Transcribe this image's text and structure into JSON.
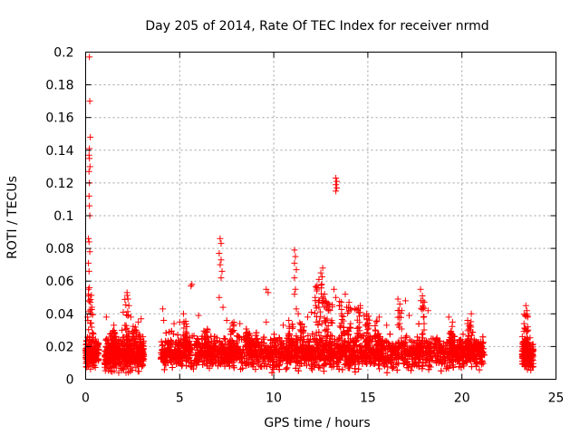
{
  "chart_data": {
    "type": "scatter",
    "title": "Day 205 of 2014, Rate Of TEC Index for receiver nrmd",
    "xlabel": "GPS time / hours",
    "ylabel": "ROTI / TECUs",
    "xlim": [
      0,
      25
    ],
    "ylim": [
      0,
      0.2
    ],
    "xticks": [
      0,
      5,
      10,
      15,
      20,
      25
    ],
    "xtick_labels": [
      "0",
      "5",
      "10",
      "15",
      "20",
      "25"
    ],
    "yticks": [
      0,
      0.02,
      0.04,
      0.06,
      0.08,
      0.1,
      0.12,
      0.14,
      0.16,
      0.18,
      0.2
    ],
    "ytick_labels": [
      "0",
      "0.02",
      "0.04",
      "0.06",
      "0.08",
      "0.1",
      "0.12",
      "0.14",
      "0.16",
      "0.18",
      "0.2"
    ],
    "grid": true,
    "marker": "+",
    "color": "#ff0000",
    "segments": [
      {
        "start": 0.0,
        "end": 0.7,
        "base": 0.016,
        "spread": 0.01
      },
      {
        "start": 1.0,
        "end": 3.1,
        "base": 0.015,
        "spread": 0.01
      },
      {
        "start": 4.0,
        "end": 21.2,
        "base": 0.016,
        "spread": 0.01
      },
      {
        "start": 23.2,
        "end": 23.8,
        "base": 0.015,
        "spread": 0.009
      }
    ],
    "outliers": [
      {
        "x": 0.2,
        "y": 0.197
      },
      {
        "x": 0.22,
        "y": 0.17
      },
      {
        "x": 0.25,
        "y": 0.148
      },
      {
        "x": 0.2,
        "y": 0.141
      },
      {
        "x": 0.18,
        "y": 0.137
      },
      {
        "x": 0.2,
        "y": 0.135
      },
      {
        "x": 0.23,
        "y": 0.13
      },
      {
        "x": 0.18,
        "y": 0.127
      },
      {
        "x": 0.2,
        "y": 0.12
      },
      {
        "x": 0.18,
        "y": 0.112
      },
      {
        "x": 0.2,
        "y": 0.106
      },
      {
        "x": 0.22,
        "y": 0.1
      },
      {
        "x": 0.15,
        "y": 0.086
      },
      {
        "x": 0.18,
        "y": 0.084
      },
      {
        "x": 0.22,
        "y": 0.078
      },
      {
        "x": 0.15,
        "y": 0.071
      },
      {
        "x": 0.18,
        "y": 0.066
      },
      {
        "x": 0.2,
        "y": 0.056
      },
      {
        "x": 0.15,
        "y": 0.051
      },
      {
        "x": 0.2,
        "y": 0.048
      },
      {
        "x": 0.1,
        "y": 0.038
      },
      {
        "x": 0.12,
        "y": 0.036
      },
      {
        "x": 1.1,
        "y": 0.038
      },
      {
        "x": 1.5,
        "y": 0.033
      },
      {
        "x": 2.0,
        "y": 0.041
      },
      {
        "x": 2.2,
        "y": 0.053
      },
      {
        "x": 2.25,
        "y": 0.049
      },
      {
        "x": 2.3,
        "y": 0.045
      },
      {
        "x": 2.4,
        "y": 0.038
      },
      {
        "x": 2.8,
        "y": 0.035
      },
      {
        "x": 2.95,
        "y": 0.037
      },
      {
        "x": 4.1,
        "y": 0.043
      },
      {
        "x": 4.15,
        "y": 0.036
      },
      {
        "x": 4.7,
        "y": 0.034
      },
      {
        "x": 5.0,
        "y": 0.035
      },
      {
        "x": 5.2,
        "y": 0.04
      },
      {
        "x": 5.6,
        "y": 0.057
      },
      {
        "x": 5.65,
        "y": 0.058
      },
      {
        "x": 6.0,
        "y": 0.039
      },
      {
        "x": 7.15,
        "y": 0.086
      },
      {
        "x": 7.2,
        "y": 0.083
      },
      {
        "x": 7.1,
        "y": 0.077
      },
      {
        "x": 7.2,
        "y": 0.073
      },
      {
        "x": 7.15,
        "y": 0.07
      },
      {
        "x": 7.25,
        "y": 0.066
      },
      {
        "x": 7.2,
        "y": 0.062
      },
      {
        "x": 7.1,
        "y": 0.05
      },
      {
        "x": 7.3,
        "y": 0.044
      },
      {
        "x": 7.5,
        "y": 0.036
      },
      {
        "x": 8.2,
        "y": 0.034
      },
      {
        "x": 9.6,
        "y": 0.055
      },
      {
        "x": 9.7,
        "y": 0.053
      },
      {
        "x": 9.6,
        "y": 0.035
      },
      {
        "x": 10.5,
        "y": 0.033
      },
      {
        "x": 10.8,
        "y": 0.036
      },
      {
        "x": 11.1,
        "y": 0.079
      },
      {
        "x": 11.15,
        "y": 0.075
      },
      {
        "x": 11.1,
        "y": 0.071
      },
      {
        "x": 11.2,
        "y": 0.067
      },
      {
        "x": 11.1,
        "y": 0.062
      },
      {
        "x": 11.15,
        "y": 0.055
      },
      {
        "x": 11.1,
        "y": 0.052
      },
      {
        "x": 11.2,
        "y": 0.043
      },
      {
        "x": 11.3,
        "y": 0.04
      },
      {
        "x": 11.8,
        "y": 0.038
      },
      {
        "x": 12.0,
        "y": 0.041
      },
      {
        "x": 12.2,
        "y": 0.05
      },
      {
        "x": 12.3,
        "y": 0.056
      },
      {
        "x": 12.4,
        "y": 0.061
      },
      {
        "x": 12.5,
        "y": 0.065
      },
      {
        "x": 12.6,
        "y": 0.068
      },
      {
        "x": 12.55,
        "y": 0.058
      },
      {
        "x": 12.7,
        "y": 0.052
      },
      {
        "x": 12.8,
        "y": 0.047
      },
      {
        "x": 12.9,
        "y": 0.042
      },
      {
        "x": 13.3,
        "y": 0.123
      },
      {
        "x": 13.35,
        "y": 0.121
      },
      {
        "x": 13.3,
        "y": 0.119
      },
      {
        "x": 13.35,
        "y": 0.117
      },
      {
        "x": 13.3,
        "y": 0.115
      },
      {
        "x": 13.2,
        "y": 0.055
      },
      {
        "x": 13.3,
        "y": 0.05
      },
      {
        "x": 13.5,
        "y": 0.045
      },
      {
        "x": 13.6,
        "y": 0.04
      },
      {
        "x": 13.8,
        "y": 0.052
      },
      {
        "x": 14.0,
        "y": 0.047
      },
      {
        "x": 14.3,
        "y": 0.043
      },
      {
        "x": 14.6,
        "y": 0.045
      },
      {
        "x": 14.8,
        "y": 0.039
      },
      {
        "x": 15.6,
        "y": 0.038
      },
      {
        "x": 16.0,
        "y": 0.033
      },
      {
        "x": 16.6,
        "y": 0.049
      },
      {
        "x": 16.7,
        "y": 0.046
      },
      {
        "x": 16.8,
        "y": 0.042
      },
      {
        "x": 17.0,
        "y": 0.048
      },
      {
        "x": 17.2,
        "y": 0.039
      },
      {
        "x": 17.8,
        "y": 0.055
      },
      {
        "x": 17.9,
        "y": 0.051
      },
      {
        "x": 18.0,
        "y": 0.047
      },
      {
        "x": 18.2,
        "y": 0.042
      },
      {
        "x": 19.3,
        "y": 0.038
      },
      {
        "x": 19.5,
        "y": 0.035
      },
      {
        "x": 20.3,
        "y": 0.034
      },
      {
        "x": 20.5,
        "y": 0.04
      },
      {
        "x": 23.4,
        "y": 0.045
      },
      {
        "x": 23.45,
        "y": 0.042
      },
      {
        "x": 23.5,
        "y": 0.038
      },
      {
        "x": 23.3,
        "y": 0.034
      }
    ],
    "spikes": [
      {
        "x": 0.25,
        "top": 0.06
      },
      {
        "x": 1.5,
        "top": 0.03
      },
      {
        "x": 2.2,
        "top": 0.052
      },
      {
        "x": 2.6,
        "top": 0.033
      },
      {
        "x": 5.3,
        "top": 0.036
      },
      {
        "x": 6.4,
        "top": 0.033
      },
      {
        "x": 7.8,
        "top": 0.035
      },
      {
        "x": 8.6,
        "top": 0.032
      },
      {
        "x": 10.9,
        "top": 0.034
      },
      {
        "x": 11.5,
        "top": 0.036
      },
      {
        "x": 12.3,
        "top": 0.06
      },
      {
        "x": 12.5,
        "top": 0.064
      },
      {
        "x": 12.8,
        "top": 0.05
      },
      {
        "x": 13.0,
        "top": 0.046
      },
      {
        "x": 13.6,
        "top": 0.048
      },
      {
        "x": 14.0,
        "top": 0.045
      },
      {
        "x": 14.5,
        "top": 0.044
      },
      {
        "x": 15.0,
        "top": 0.04
      },
      {
        "x": 15.5,
        "top": 0.036
      },
      {
        "x": 16.7,
        "top": 0.044
      },
      {
        "x": 17.9,
        "top": 0.05
      },
      {
        "x": 19.4,
        "top": 0.036
      },
      {
        "x": 20.4,
        "top": 0.036
      },
      {
        "x": 23.4,
        "top": 0.04
      }
    ]
  }
}
